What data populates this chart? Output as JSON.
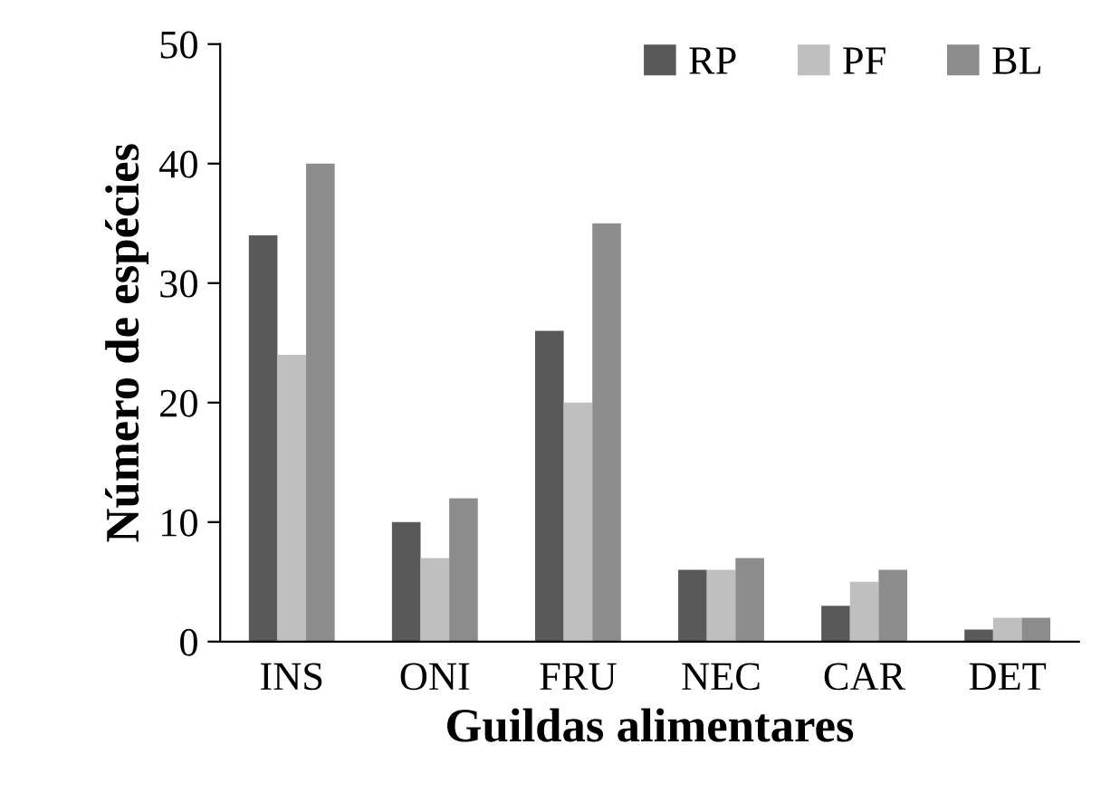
{
  "chart_data": {
    "type": "bar",
    "xlabel": "Guildas alimentares",
    "ylabel": "Número de espécies",
    "categories": [
      "INS",
      "ONI",
      "FRU",
      "NEC",
      "CAR",
      "DET"
    ],
    "series": [
      {
        "name": "RP",
        "color": "#595959",
        "values": [
          34,
          10,
          26,
          6,
          3,
          1
        ]
      },
      {
        "name": "PF",
        "color": "#bfbfbf",
        "values": [
          24,
          7,
          20,
          6,
          5,
          2
        ]
      },
      {
        "name": "BL",
        "color": "#8c8c8c",
        "values": [
          40,
          12,
          35,
          7,
          6,
          2
        ]
      }
    ],
    "ylim": [
      0,
      50
    ],
    "yticks": [
      0,
      10,
      20,
      30,
      40,
      50
    ],
    "grid": false,
    "legend": "top right"
  }
}
